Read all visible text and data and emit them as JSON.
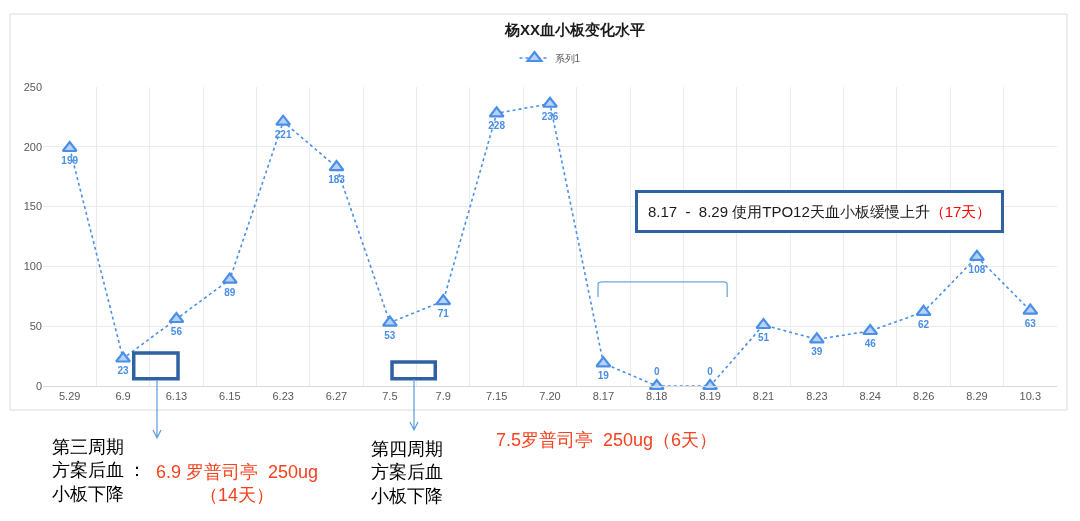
{
  "chart_data": {
    "type": "line",
    "title": "杨XX血小板变化水平",
    "categories": [
      "5.29",
      "6.9",
      "6.13",
      "6.15",
      "6.23",
      "6.27",
      "7.5",
      "7.9",
      "7.15",
      "7.20",
      "8.17",
      "8.18",
      "8.19",
      "8.21",
      "8.23",
      "8.24",
      "8.26",
      "8.29",
      "10.3"
    ],
    "series": [
      {
        "name": "系列1",
        "color": "#4a8fe7",
        "values": [
          199,
          23,
          56,
          89,
          221,
          183,
          53,
          71,
          228,
          236,
          19,
          0,
          0,
          51,
          39,
          46,
          62,
          108,
          63
        ]
      }
    ],
    "ylim": [
      0,
      250
    ],
    "yticks": [
      0,
      50,
      100,
      150,
      200,
      250
    ],
    "grid": true,
    "legend": "top",
    "marker": "triangle",
    "line_style": "dotted",
    "data_labels": true,
    "annotations": [
      "8.17  -  8.29 使用TPO12天血小板缓慢上升",
      "（17天）",
      "第三周期方案后血小板下降",
      "：",
      "6.9 罗普司亭  250ug\n（14天）",
      "第四周期方案后血小板下降",
      "7.5罗普司亭  250ug（6天）"
    ]
  }
}
